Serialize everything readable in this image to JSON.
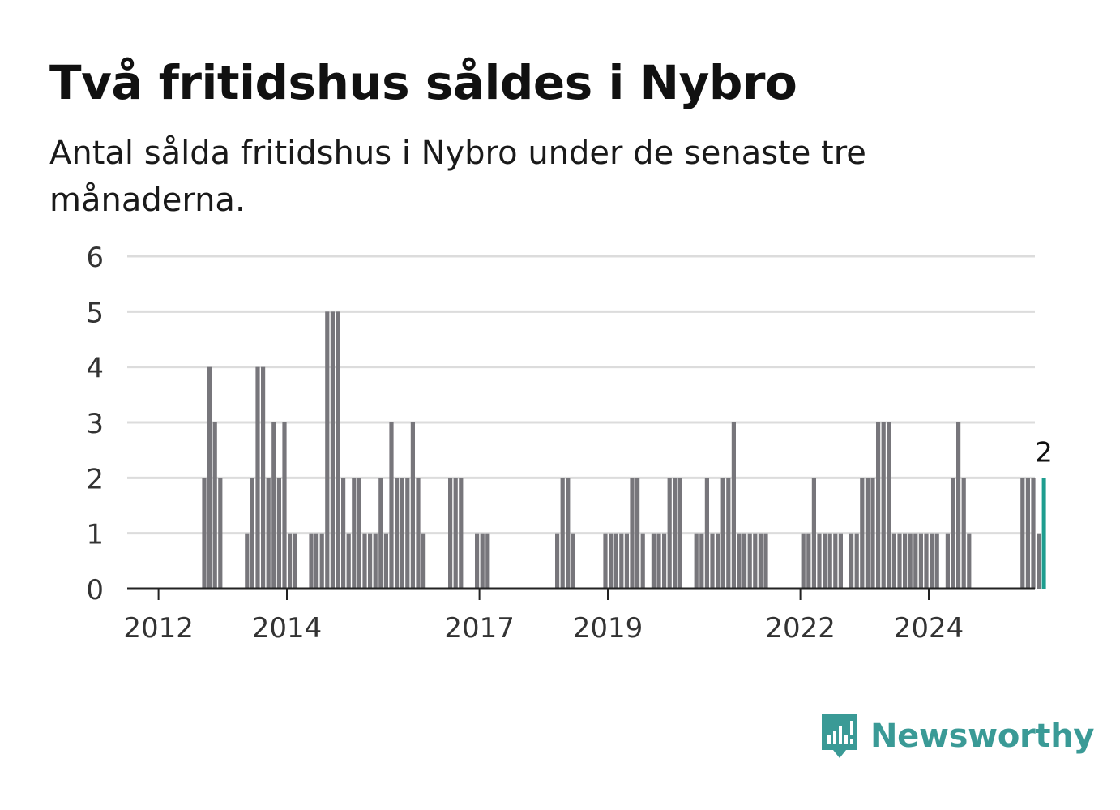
{
  "title": "Två fritidshus såldes i Nybro",
  "subtitle": "Antal sålda fritidshus i Nybro under de senaste tre månaderna.",
  "brand": {
    "name": "Newsworthy",
    "icon": "newsworthy-logo-icon",
    "color": "#3a9a96"
  },
  "chart_data": {
    "type": "bar",
    "ylim": [
      0,
      6
    ],
    "yticks": [
      "0",
      "1",
      "2",
      "3",
      "4",
      "5",
      "6"
    ],
    "xticks": [
      "2012",
      "2014",
      "2017",
      "2019",
      "2022",
      "2024"
    ],
    "grid": true,
    "start": "2011-07",
    "values": [
      0,
      0,
      0,
      0,
      0,
      0,
      0,
      0,
      0,
      0,
      0,
      0,
      0,
      0,
      2,
      4,
      3,
      2,
      0,
      0,
      0,
      0,
      1,
      2,
      4,
      4,
      2,
      3,
      2,
      3,
      1,
      1,
      0,
      0,
      1,
      1,
      1,
      5,
      5,
      5,
      2,
      1,
      2,
      2,
      1,
      1,
      1,
      2,
      1,
      3,
      2,
      2,
      2,
      3,
      2,
      1,
      0,
      0,
      0,
      0,
      2,
      2,
      2,
      0,
      0,
      1,
      1,
      1,
      0,
      0,
      0,
      0,
      0,
      0,
      0,
      0,
      0,
      0,
      0,
      0,
      1,
      2,
      2,
      1,
      0,
      0,
      0,
      0,
      0,
      1,
      1,
      1,
      1,
      1,
      2,
      2,
      1,
      0,
      1,
      1,
      1,
      2,
      2,
      2,
      0,
      0,
      1,
      1,
      2,
      1,
      1,
      2,
      2,
      3,
      1,
      1,
      1,
      1,
      1,
      1,
      0,
      0,
      0,
      0,
      0,
      0,
      1,
      1,
      2,
      1,
      1,
      1,
      1,
      1,
      0,
      1,
      1,
      2,
      2,
      2,
      3,
      3,
      3,
      1,
      1,
      1,
      1,
      1,
      1,
      1,
      1,
      1,
      0,
      1,
      2,
      3,
      2,
      1,
      0,
      0,
      0,
      0,
      0,
      0,
      0,
      0,
      0,
      2,
      2,
      2,
      1,
      2
    ],
    "highlight_label": "2",
    "colors": {
      "bar": "#77767b",
      "highlight": "#1e9d8f",
      "grid": "#dcdcdc",
      "axis": "#222222",
      "tick_text": "#333333"
    }
  }
}
